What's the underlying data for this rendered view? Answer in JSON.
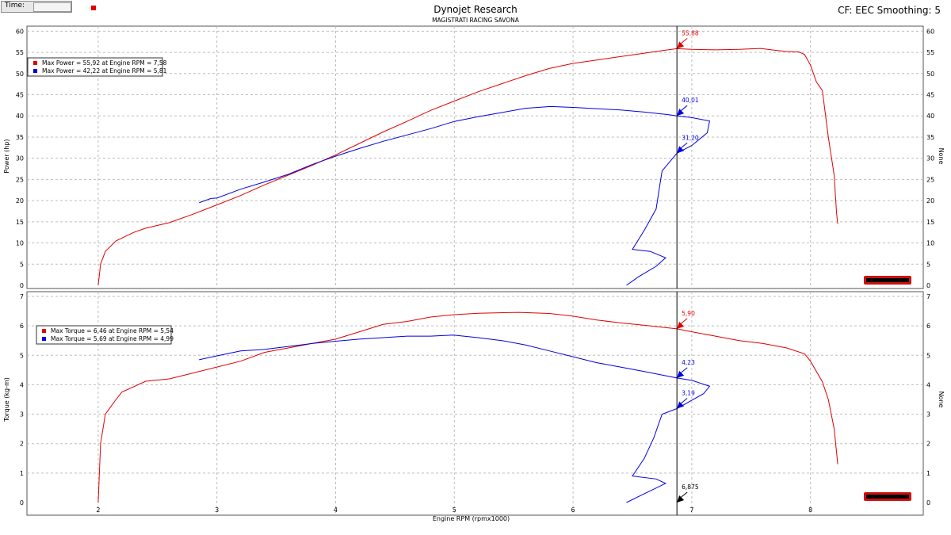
{
  "header": {
    "time_label": "Time:",
    "title": "Dynojet Research",
    "subtitle": "MAGISTRATI RACING SAVONA",
    "right_info": "CF: EEC Smoothing: 5"
  },
  "colors": {
    "run1": "#e00000",
    "run2": "#0000dd",
    "cursor": "#000000"
  },
  "cursor_readout": {
    "rpm": "6,875"
  },
  "chart_data": [
    {
      "type": "line",
      "ylabel": "Power (hp)",
      "y2label": "None",
      "xlabel": "",
      "xlim": [
        1.4,
        8.95
      ],
      "ylim": [
        0,
        61
      ],
      "yticks": [
        0,
        5,
        10,
        15,
        20,
        25,
        30,
        35,
        40,
        45,
        50,
        55,
        60
      ],
      "legend": [
        "Max Power = 55,92 at Engine RPM = 7,58",
        "Max Power = 42,22 at Engine RPM = 5,81"
      ],
      "cursor_x": 6.875,
      "cursor_labels": [
        {
          "text": "55,88",
          "y": 55.88,
          "series": 0
        },
        {
          "text": "40,01",
          "y": 40.01,
          "series": 1
        },
        {
          "text": "31,20",
          "y": 31.2,
          "series": 1
        }
      ],
      "series": [
        {
          "points": [
            [
              2.0,
              0
            ],
            [
              2.02,
              5
            ],
            [
              2.06,
              8
            ],
            [
              2.15,
              10.5
            ],
            [
              2.3,
              12.5
            ],
            [
              2.4,
              13.5
            ],
            [
              2.6,
              14.8
            ],
            [
              2.8,
              16.8
            ],
            [
              3.0,
              19
            ],
            [
              3.2,
              21.2
            ],
            [
              3.4,
              23.7
            ],
            [
              3.6,
              26
            ],
            [
              3.8,
              28.3
            ],
            [
              4.0,
              30.8
            ],
            [
              4.2,
              33.5
            ],
            [
              4.4,
              36.2
            ],
            [
              4.6,
              38.7
            ],
            [
              4.8,
              41.3
            ],
            [
              5.0,
              43.5
            ],
            [
              5.2,
              45.7
            ],
            [
              5.4,
              47.6
            ],
            [
              5.6,
              49.5
            ],
            [
              5.8,
              51.2
            ],
            [
              6.0,
              52.4
            ],
            [
              6.2,
              53.2
            ],
            [
              6.4,
              54
            ],
            [
              6.6,
              54.8
            ],
            [
              6.75,
              55.4
            ],
            [
              6.875,
              55.88
            ],
            [
              7.0,
              55.7
            ],
            [
              7.2,
              55.6
            ],
            [
              7.4,
              55.7
            ],
            [
              7.58,
              55.92
            ],
            [
              7.7,
              55.5
            ],
            [
              7.8,
              55.2
            ],
            [
              7.9,
              55.1
            ],
            [
              7.95,
              54.5
            ],
            [
              8.0,
              52
            ],
            [
              8.05,
              48
            ],
            [
              8.1,
              46
            ],
            [
              8.15,
              35
            ],
            [
              8.2,
              26
            ],
            [
              8.22,
              17
            ],
            [
              8.23,
              14.5
            ]
          ]
        },
        {
          "points": [
            [
              2.85,
              19.5
            ],
            [
              2.95,
              20.5
            ],
            [
              3.0,
              20.6
            ],
            [
              3.2,
              22.7
            ],
            [
              3.4,
              24.4
            ],
            [
              3.6,
              26.2
            ],
            [
              3.8,
              28.5
            ],
            [
              4.0,
              30.5
            ],
            [
              4.2,
              32.3
            ],
            [
              4.4,
              34
            ],
            [
              4.6,
              35.5
            ],
            [
              4.8,
              37
            ],
            [
              5.0,
              38.7
            ],
            [
              5.2,
              39.8
            ],
            [
              5.4,
              40.8
            ],
            [
              5.6,
              41.8
            ],
            [
              5.81,
              42.22
            ],
            [
              6.0,
              42
            ],
            [
              6.2,
              41.7
            ],
            [
              6.4,
              41.4
            ],
            [
              6.6,
              40.9
            ],
            [
              6.8,
              40.3
            ],
            [
              6.875,
              40.01
            ],
            [
              7.0,
              39.6
            ],
            [
              7.15,
              38.8
            ],
            [
              7.13,
              36
            ],
            [
              7.0,
              33
            ],
            [
              6.875,
              31.2
            ],
            [
              6.75,
              27
            ],
            [
              6.7,
              18
            ],
            [
              6.6,
              13
            ],
            [
              6.5,
              8.5
            ],
            [
              6.65,
              8
            ],
            [
              6.78,
              6.5
            ],
            [
              6.7,
              4.5
            ],
            [
              6.55,
              2
            ],
            [
              6.45,
              0
            ]
          ]
        }
      ]
    },
    {
      "type": "line",
      "ylabel": "Torque (kg-m)",
      "y2label": "None",
      "xlabel": "Engine RPM (rpmx1000)",
      "xlim": [
        1.4,
        8.95
      ],
      "ylim": [
        0,
        7
      ],
      "yticks": [
        0,
        1,
        2,
        3,
        4,
        5,
        6,
        7
      ],
      "xticks": [
        2,
        3,
        4,
        5,
        6,
        7,
        8
      ],
      "legend": [
        "Max Torque = 6,46 at Engine RPM = 5,54",
        "Max Torque = 5,69 at Engine RPM = 4,99"
      ],
      "cursor_x": 6.875,
      "cursor_labels": [
        {
          "text": "5,90",
          "y": 5.9,
          "series": 0
        },
        {
          "text": "4,23",
          "y": 4.23,
          "series": 1
        },
        {
          "text": "3,19",
          "y": 3.19,
          "series": 1
        },
        {
          "text": "6,875",
          "y": 0,
          "series": 2
        }
      ],
      "series": [
        {
          "points": [
            [
              2.0,
              0
            ],
            [
              2.02,
              2
            ],
            [
              2.06,
              3
            ],
            [
              2.15,
              3.5
            ],
            [
              2.2,
              3.75
            ],
            [
              2.4,
              4.12
            ],
            [
              2.6,
              4.2
            ],
            [
              2.8,
              4.4
            ],
            [
              3.0,
              4.6
            ],
            [
              3.2,
              4.8
            ],
            [
              3.4,
              5.1
            ],
            [
              3.6,
              5.25
            ],
            [
              3.8,
              5.4
            ],
            [
              4.0,
              5.55
            ],
            [
              4.2,
              5.8
            ],
            [
              4.4,
              6.05
            ],
            [
              4.6,
              6.15
            ],
            [
              4.8,
              6.3
            ],
            [
              5.0,
              6.38
            ],
            [
              5.2,
              6.43
            ],
            [
              5.54,
              6.46
            ],
            [
              5.8,
              6.42
            ],
            [
              6.0,
              6.33
            ],
            [
              6.2,
              6.2
            ],
            [
              6.4,
              6.1
            ],
            [
              6.6,
              6.02
            ],
            [
              6.875,
              5.9
            ],
            [
              7.0,
              5.8
            ],
            [
              7.2,
              5.65
            ],
            [
              7.4,
              5.5
            ],
            [
              7.6,
              5.4
            ],
            [
              7.8,
              5.25
            ],
            [
              7.95,
              5.05
            ],
            [
              8.0,
              4.8
            ],
            [
              8.1,
              4.1
            ],
            [
              8.15,
              3.5
            ],
            [
              8.2,
              2.5
            ],
            [
              8.23,
              1.3
            ]
          ]
        },
        {
          "points": [
            [
              2.85,
              4.85
            ],
            [
              3.0,
              4.98
            ],
            [
              3.2,
              5.15
            ],
            [
              3.4,
              5.2
            ],
            [
              3.6,
              5.3
            ],
            [
              3.8,
              5.4
            ],
            [
              4.0,
              5.48
            ],
            [
              4.2,
              5.55
            ],
            [
              4.4,
              5.6
            ],
            [
              4.6,
              5.65
            ],
            [
              4.8,
              5.65
            ],
            [
              4.99,
              5.69
            ],
            [
              5.2,
              5.6
            ],
            [
              5.4,
              5.5
            ],
            [
              5.6,
              5.35
            ],
            [
              5.8,
              5.15
            ],
            [
              6.0,
              4.95
            ],
            [
              6.2,
              4.75
            ],
            [
              6.4,
              4.6
            ],
            [
              6.6,
              4.45
            ],
            [
              6.875,
              4.23
            ],
            [
              7.0,
              4.15
            ],
            [
              7.15,
              3.95
            ],
            [
              7.1,
              3.7
            ],
            [
              6.875,
              3.19
            ],
            [
              6.75,
              3.0
            ],
            [
              6.68,
              2.2
            ],
            [
              6.6,
              1.5
            ],
            [
              6.5,
              0.9
            ],
            [
              6.7,
              0.8
            ],
            [
              6.78,
              0.65
            ],
            [
              6.6,
              0.3
            ],
            [
              6.45,
              0
            ]
          ]
        }
      ]
    }
  ]
}
